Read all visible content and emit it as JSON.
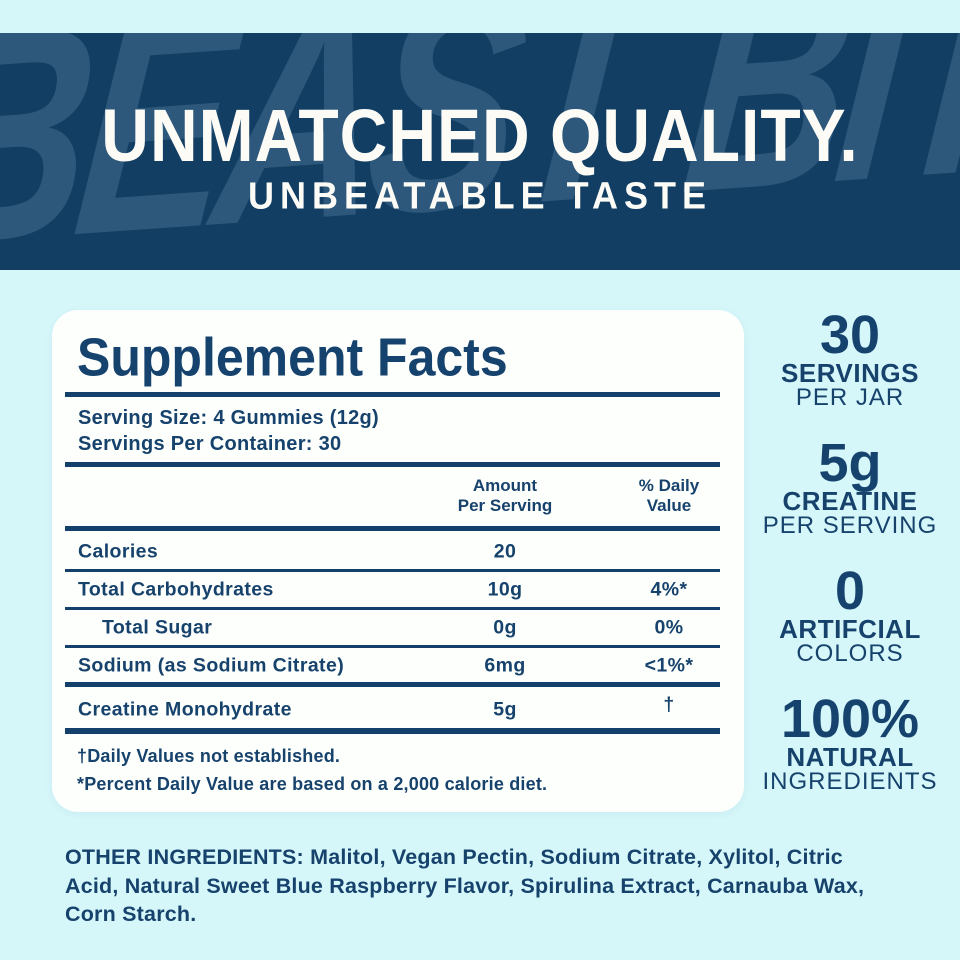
{
  "colors": {
    "navy_text": "#16426c",
    "banner_navy": "#123e63",
    "watermark_blue": "#6d95b5",
    "background_cyan": "#d5f7fa",
    "panel_white": "#fdfffd",
    "banner_text_white": "#fcfbf6"
  },
  "banner": {
    "watermark": "BEAST BITE",
    "title": "UNMATCHED QUALITY.",
    "subtitle": "UNBEATABLE TASTE"
  },
  "supplement_facts": {
    "title": "Supplement Facts",
    "serving_size": "Serving Size: 4 Gummies (12g)",
    "servings_per_container": "Servings Per Container: 30",
    "col_amount": "Amount\nPer Serving",
    "col_daily_value": "% Daily\nValue",
    "rows": [
      {
        "label": "Calories",
        "amount": "20",
        "daily_value": ""
      },
      {
        "label": "Total Carbohydrates",
        "amount": "10g",
        "daily_value": "4%*"
      },
      {
        "label": "Total Sugar",
        "amount": "0g",
        "daily_value": "0%"
      },
      {
        "label": "Sodium (as Sodium Citrate)",
        "amount": "6mg",
        "daily_value": "<1%*"
      },
      {
        "label": "Creatine Monohydrate",
        "amount": "5g",
        "daily_value": "†"
      }
    ],
    "footnotes": [
      "†Daily Values not established.",
      "*Percent Daily Value are based on a 2,000 calorie diet."
    ]
  },
  "highlights": [
    {
      "value": "30",
      "label": "SERVINGS",
      "sublabel": "PER JAR"
    },
    {
      "value": "5g",
      "label": "CREATINE",
      "sublabel": "PER SERVING"
    },
    {
      "value": "0",
      "label": "ARTIFCIAL",
      "sublabel": "COLORS"
    },
    {
      "value": "100%",
      "label": "NATURAL",
      "sublabel": "INGREDIENTS"
    }
  ],
  "other_ingredients": "OTHER INGREDIENTS: Malitol, Vegan Pectin, Sodium Citrate, Xylitol, Citric\nAcid, Natural Sweet Blue Raspberry Flavor, Spirulina Extract, Carnauba Wax,\nCorn Starch."
}
